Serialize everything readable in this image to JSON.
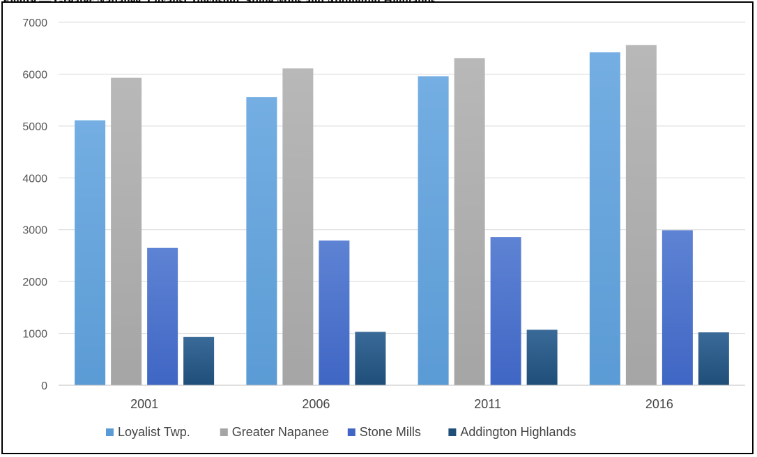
{
  "caption": "Figure — Greater Napanee, Loyalist Township, Stone Mills and Addington Highlands",
  "chart_data": {
    "type": "bar",
    "title": "",
    "xlabel": "",
    "ylabel": "",
    "ylim": [
      0,
      7000
    ],
    "yticks": [
      0,
      1000,
      2000,
      3000,
      4000,
      5000,
      6000,
      7000
    ],
    "grid": true,
    "legend_position": "bottom",
    "categories": [
      "2001",
      "2006",
      "2011",
      "2016"
    ],
    "series": [
      {
        "name": "Loyalist Twp.",
        "color": "#5b9bd5",
        "color_top": "#74aee2",
        "values": [
          5110,
          5560,
          5960,
          6420
        ]
      },
      {
        "name": "Greater Napanee",
        "color": "#a5a5a5",
        "color_top": "#b8b8b8",
        "values": [
          5930,
          6110,
          6310,
          6560
        ]
      },
      {
        "name": "Stone Mills",
        "color": "#3f66c4",
        "color_top": "#5e83d4",
        "values": [
          2650,
          2790,
          2860,
          2990
        ]
      },
      {
        "name": "Addington Highlands",
        "color": "#1f4e79",
        "color_top": "#3a6a98",
        "values": [
          930,
          1030,
          1070,
          1020
        ]
      }
    ]
  }
}
